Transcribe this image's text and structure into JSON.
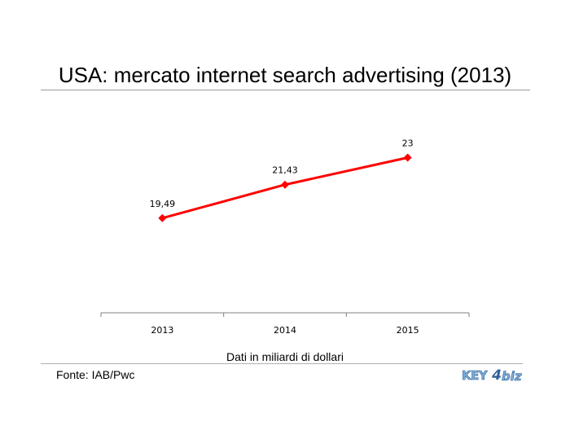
{
  "page": {
    "title": "USA: mercato internet search advertising (2013)",
    "source": "Fonte: IAB/Pwc",
    "logo": {
      "text_key": "KEY",
      "text_4": "4",
      "text_biz": "biz"
    }
  },
  "chart_data": {
    "type": "line",
    "title": "USA: mercato internet search advertising (2013)",
    "xlabel": "Dati in miliardi di dollari",
    "ylabel": "",
    "categories": [
      "2013",
      "2014",
      "2015"
    ],
    "series": [
      {
        "values": [
          19.49,
          21.43,
          23
        ],
        "labels": [
          "19,49",
          "21,43",
          "23"
        ],
        "color": "#ff0000"
      }
    ],
    "ylim": [
      14,
      26
    ],
    "grid": false,
    "legend": false,
    "axis_color": "#808080"
  }
}
